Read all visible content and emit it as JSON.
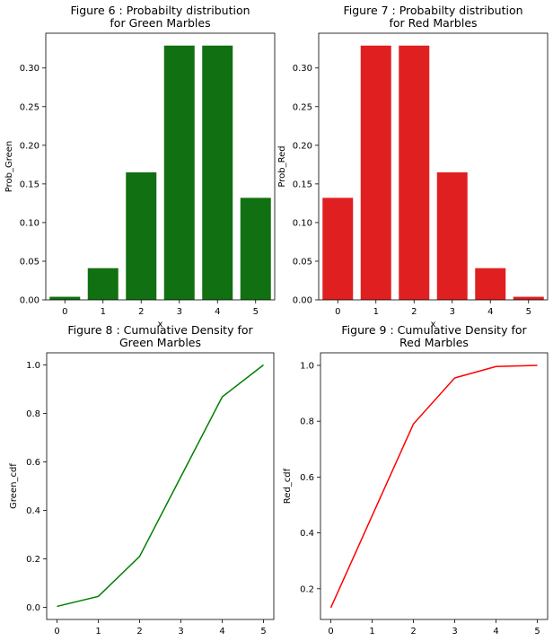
{
  "chart_data": [
    {
      "type": "bar",
      "title": "Figure 6 : Probabilty distribution\nfor Green Marbles",
      "xlabel": "x",
      "ylabel": "Prob_Green",
      "categories": [
        "0",
        "1",
        "2",
        "3",
        "4",
        "5"
      ],
      "values": [
        0.004,
        0.041,
        0.165,
        0.329,
        0.329,
        0.132
      ],
      "ylim": [
        0,
        0.345
      ],
      "yticks": [
        0.0,
        0.05,
        0.1,
        0.15,
        0.2,
        0.25,
        0.3
      ],
      "ytick_labels": [
        "0.00",
        "0.05",
        "0.10",
        "0.15",
        "0.20",
        "0.25",
        "0.30"
      ],
      "color": "#117011"
    },
    {
      "type": "bar",
      "title": "Figure 7 : Probabilty distribution\nfor Red Marbles",
      "xlabel": "x",
      "ylabel": "Prob_Red",
      "categories": [
        "0",
        "1",
        "2",
        "3",
        "4",
        "5"
      ],
      "values": [
        0.132,
        0.329,
        0.329,
        0.165,
        0.041,
        0.004
      ],
      "ylim": [
        0,
        0.345
      ],
      "yticks": [
        0.0,
        0.05,
        0.1,
        0.15,
        0.2,
        0.25,
        0.3
      ],
      "ytick_labels": [
        "0.00",
        "0.05",
        "0.10",
        "0.15",
        "0.20",
        "0.25",
        "0.30"
      ],
      "color": "#e02020"
    },
    {
      "type": "line",
      "title": "Figure 8 : Cumulative Density for\nGreen Marbles",
      "xlabel": "",
      "ylabel": "Green_cdf",
      "x": [
        0,
        1,
        2,
        3,
        4,
        5
      ],
      "y": [
        0.004,
        0.045,
        0.21,
        0.539,
        0.868,
        1.0
      ],
      "xlim": [
        -0.25,
        5.25
      ],
      "ylim": [
        -0.05,
        1.05
      ],
      "xticks": [
        0,
        1,
        2,
        3,
        4,
        5
      ],
      "yticks": [
        0.0,
        0.2,
        0.4,
        0.6,
        0.8,
        1.0
      ],
      "ytick_labels": [
        "0.0",
        "0.2",
        "0.4",
        "0.6",
        "0.8",
        "1.0"
      ],
      "color": "#008000"
    },
    {
      "type": "line",
      "title": "Figure 9 : Cumulative Density for\nRed Marbles",
      "xlabel": "",
      "ylabel": "Red_cdf",
      "x": [
        0,
        1,
        2,
        3,
        4,
        5
      ],
      "y": [
        0.132,
        0.461,
        0.79,
        0.955,
        0.996,
        1.0
      ],
      "xlim": [
        -0.25,
        5.25
      ],
      "ylim": [
        0.09,
        1.045
      ],
      "xticks": [
        0,
        1,
        2,
        3,
        4,
        5
      ],
      "yticks": [
        0.2,
        0.4,
        0.6,
        0.8,
        1.0
      ],
      "ytick_labels": [
        "0.2",
        "0.4",
        "0.6",
        "0.8",
        "1.0"
      ],
      "color": "#ff0000"
    }
  ]
}
